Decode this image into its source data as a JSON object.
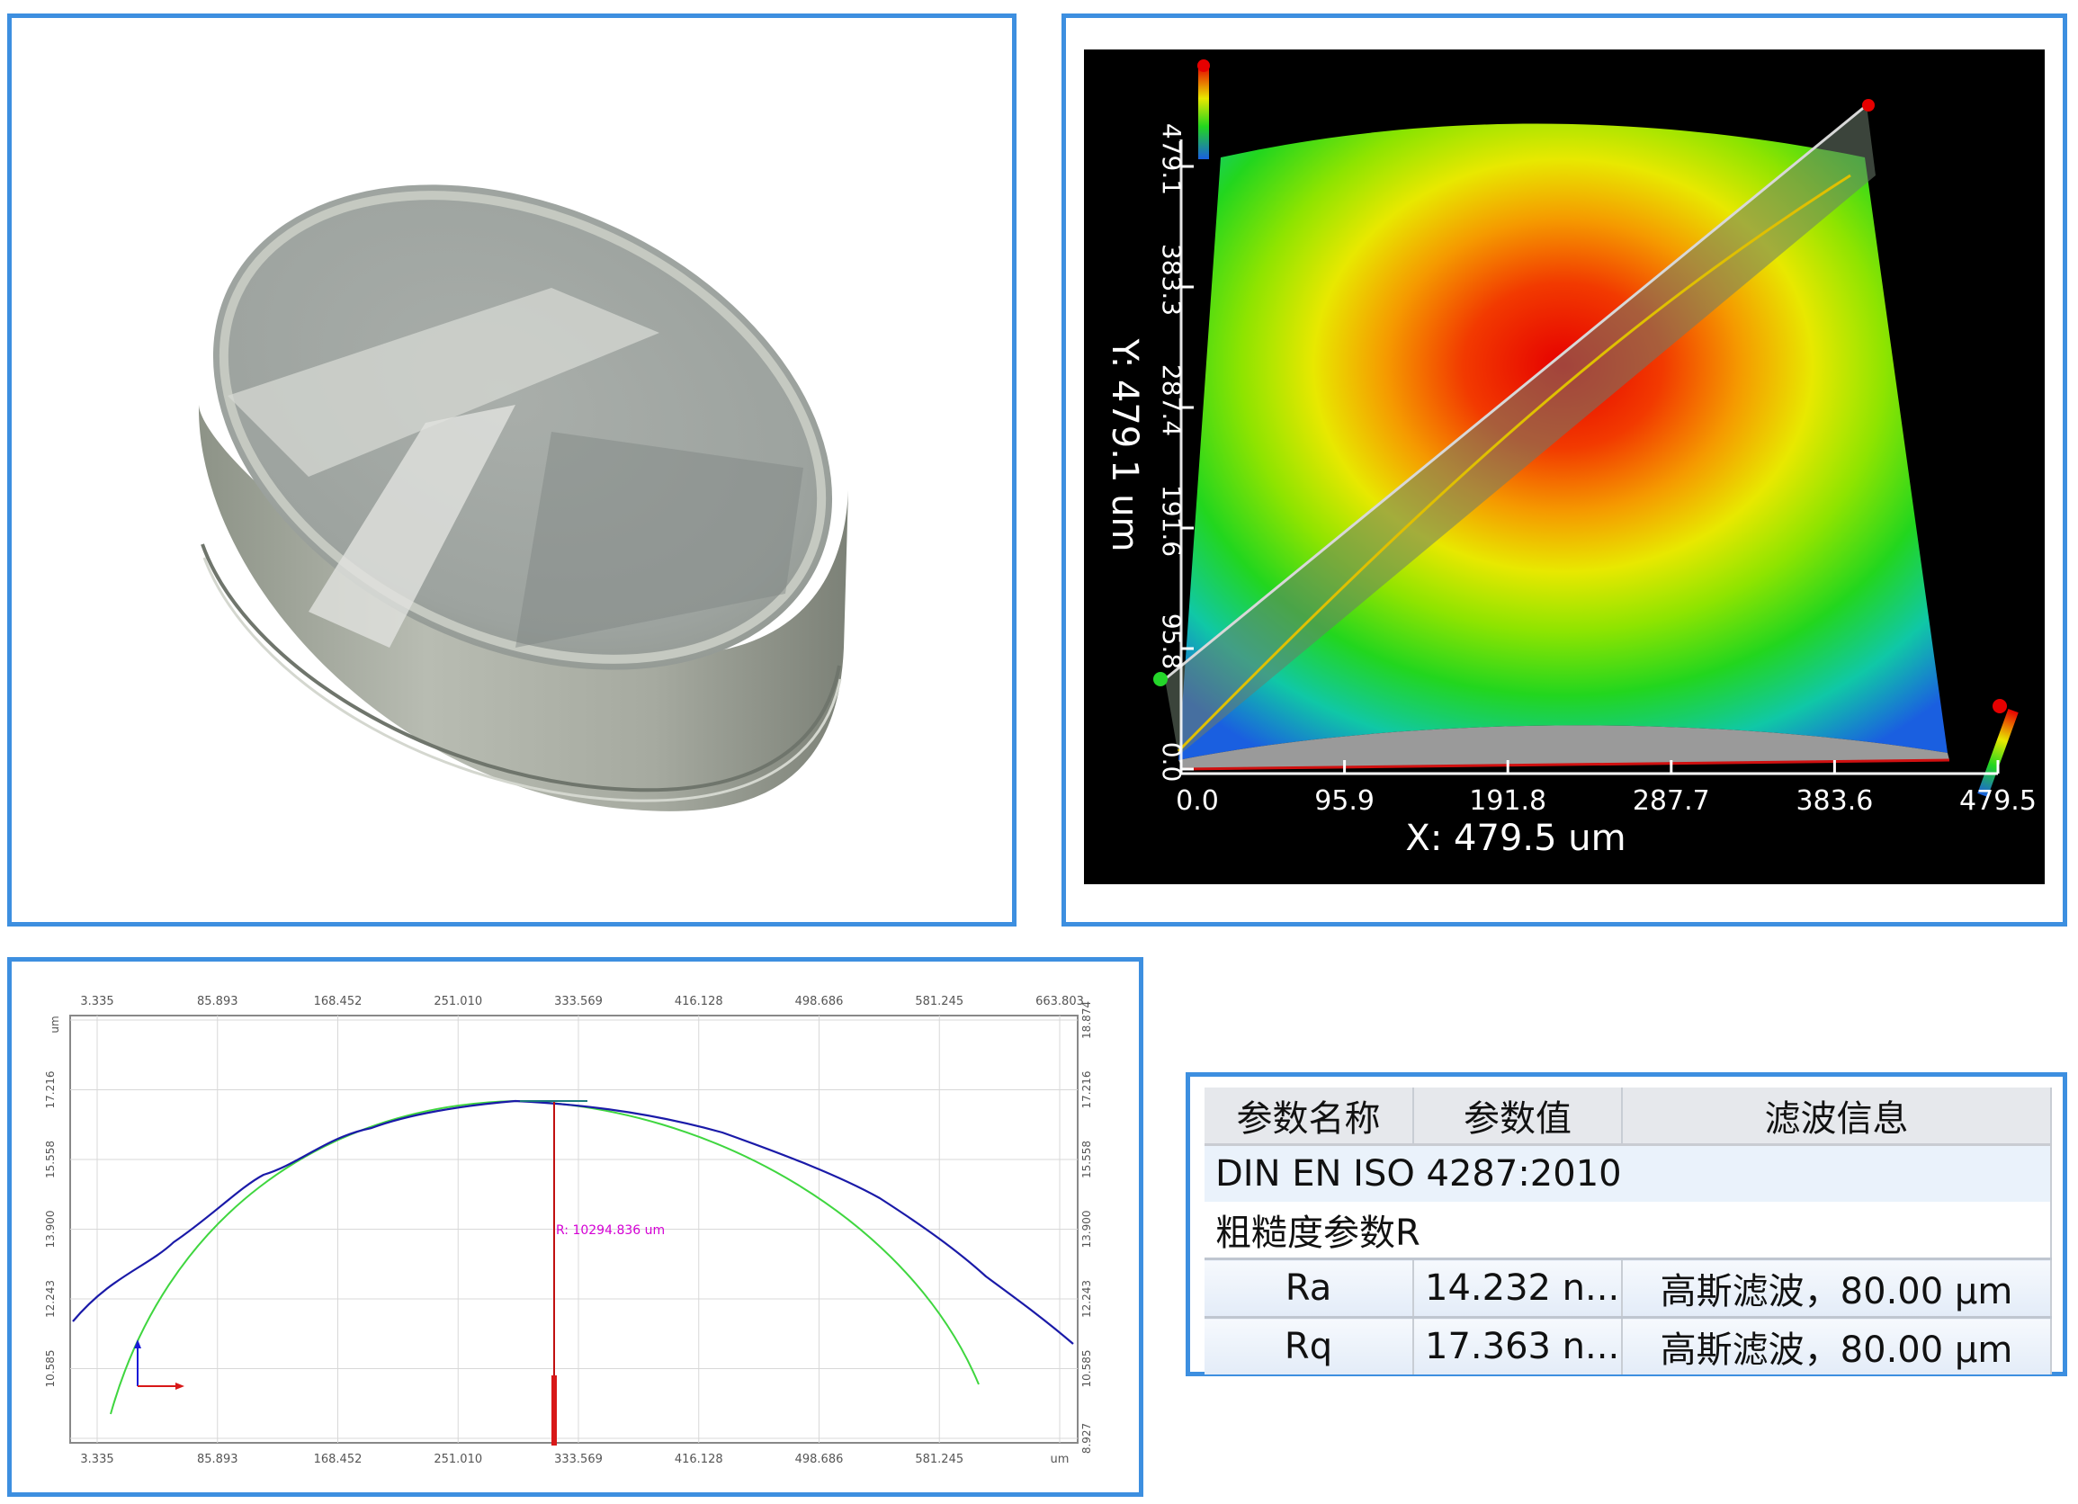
{
  "colors": {
    "panel_border": "#3d8fe0",
    "profile_measured": "#1a1aa8",
    "profile_fit": "#3fd63f",
    "radius_line": "#d81818",
    "radius_label": "#d400d4",
    "surface_bg": "#000000"
  },
  "photo": {
    "subject": "optical-lens"
  },
  "surface_3d": {
    "y_axis": {
      "label": "Y: 479.1 um",
      "ticks": [
        "0.0",
        "95.8",
        "191.6",
        "287.4",
        "383.3",
        "479.1"
      ]
    },
    "x_axis": {
      "label": "X: 479.5 um",
      "ticks": [
        "0.0",
        "95.9",
        "191.8",
        "287.7",
        "383.6",
        "479.5"
      ]
    }
  },
  "profile": {
    "top_ticks": [
      "3.335",
      "85.893",
      "168.452",
      "251.010",
      "333.569",
      "416.128",
      "498.686",
      "581.245",
      "663.803"
    ],
    "bottom_ticks": [
      "3.335",
      "85.893",
      "168.452",
      "251.010",
      "333.569",
      "416.128",
      "498.686",
      "581.245"
    ],
    "bottom_unit": "um",
    "left_unit": "um",
    "left_ticks": [
      "17.216",
      "15.558",
      "13.900",
      "12.243",
      "10.585"
    ],
    "right_ticks": [
      "18.874",
      "17.216",
      "15.558",
      "13.900",
      "12.243",
      "10.585",
      "8.927"
    ],
    "radius_label": "R: 10294.836 um"
  },
  "params_table": {
    "headers": [
      "参数名称",
      "参数值",
      "滤波信息"
    ],
    "standard": "DIN EN ISO 4287:2010",
    "group": "粗糙度参数R",
    "rows": [
      {
        "name": "Ra",
        "value": "14.232 n...",
        "filter": "高斯滤波，80.00 µm"
      },
      {
        "name": "Rq",
        "value": "17.363 n...",
        "filter": "高斯滤波，80.00 µm"
      }
    ]
  }
}
